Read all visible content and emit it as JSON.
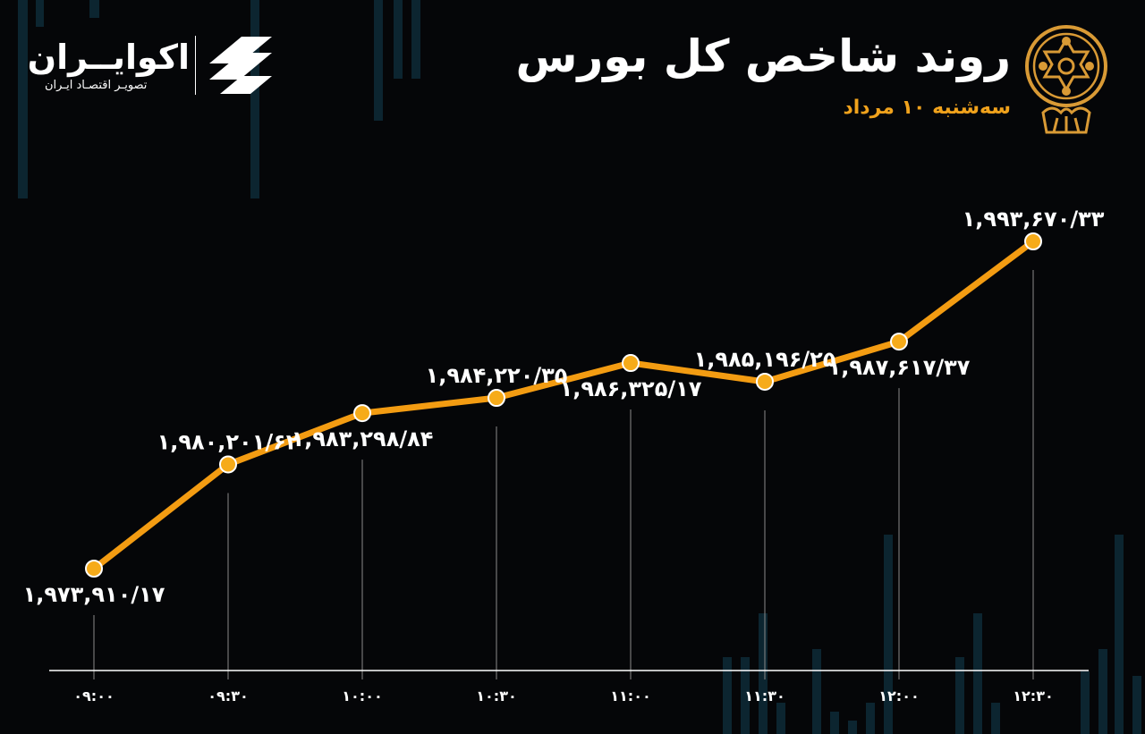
{
  "header": {
    "title": "روند شاخص کل بورس",
    "subtitle": "سه‌شنبه ۱۰ مرداد"
  },
  "brand": {
    "name": "اکوایــران",
    "tagline": "تصویـر اقتصـاد ایـران"
  },
  "colors": {
    "background": "#050608",
    "line": "#f39c12",
    "marker": "#f6ab1a",
    "title": "#ffffff",
    "subtitle": "#f0a21c",
    "decorative_bars": "#0c2530"
  },
  "icons": {
    "emblem": "stock-exchange-emblem-icon",
    "brand_logo": "ecoiran-logo-icon"
  },
  "chart_data": {
    "type": "line",
    "title": "روند شاخص کل بورس",
    "subtitle": "سه‌شنبه ۱۰ مرداد",
    "xlabel": "",
    "ylabel": "",
    "categories": [
      "۰۹:۰۰",
      "۰۹:۳۰",
      "۱۰:۰۰",
      "۱۰:۳۰",
      "۱۱:۰۰",
      "۱۱:۳۰",
      "۱۲:۰۰",
      "۱۲:۳۰"
    ],
    "values": [
      1973910.17,
      1980201.62,
      1983298.84,
      1984220.35,
      1986325.17,
      1985196.25,
      1987617.37,
      1993670.33
    ],
    "point_labels": [
      "۱,۹۷۳,۹۱۰/۱۷",
      "۱,۹۸۰,۲۰۱/۶۲",
      "۱,۹۸۳,۲۹۸/۸۴",
      "۱,۹۸۴,۲۲۰/۳۵",
      "۱,۹۸۶,۳۲۵/۱۷",
      "۱,۹۸۵,۱۹۶/۲۵",
      "۱,۹۸۷,۶۱۷/۳۷",
      "۱,۹۹۳,۶۷۰/۳۳"
    ],
    "label_placement": [
      "below",
      "above",
      "below",
      "above",
      "below",
      "above",
      "below",
      "above"
    ],
    "grid": false,
    "legend": "none",
    "marker": "circle"
  }
}
